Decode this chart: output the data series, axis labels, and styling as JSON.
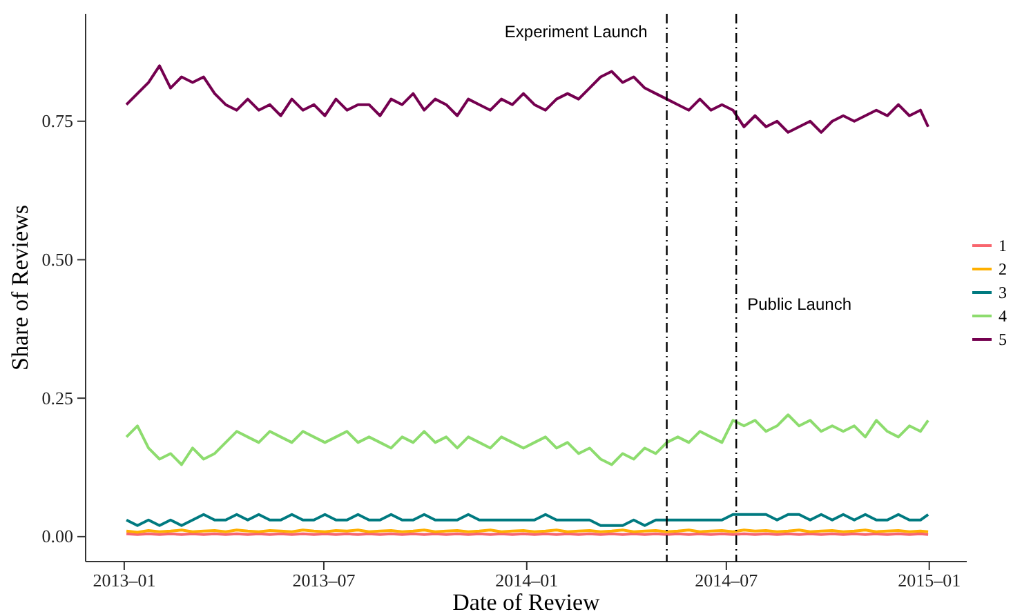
{
  "chart_data": {
    "type": "line",
    "xlabel": "Date of Review",
    "ylabel": "Share of Reviews",
    "x": [
      "2013-01-03",
      "2013-01-13",
      "2013-01-23",
      "2013-02-02",
      "2013-02-12",
      "2013-02-22",
      "2013-03-04",
      "2013-03-14",
      "2013-03-24",
      "2013-04-03",
      "2013-04-13",
      "2013-04-23",
      "2013-05-03",
      "2013-05-13",
      "2013-05-23",
      "2013-06-02",
      "2013-06-12",
      "2013-06-22",
      "2013-07-02",
      "2013-07-12",
      "2013-07-22",
      "2013-08-01",
      "2013-08-11",
      "2013-08-21",
      "2013-08-31",
      "2013-09-10",
      "2013-09-20",
      "2013-09-30",
      "2013-10-10",
      "2013-10-20",
      "2013-10-30",
      "2013-11-09",
      "2013-11-19",
      "2013-11-29",
      "2013-12-09",
      "2013-12-19",
      "2013-12-29",
      "2014-01-08",
      "2014-01-18",
      "2014-01-28",
      "2014-02-07",
      "2014-02-17",
      "2014-02-27",
      "2014-03-09",
      "2014-03-19",
      "2014-03-29",
      "2014-04-08",
      "2014-04-18",
      "2014-04-28",
      "2014-05-08",
      "2014-05-18",
      "2014-05-28",
      "2014-06-07",
      "2014-06-17",
      "2014-06-27",
      "2014-07-07",
      "2014-07-17",
      "2014-07-27",
      "2014-08-06",
      "2014-08-16",
      "2014-08-26",
      "2014-09-05",
      "2014-09-15",
      "2014-09-25",
      "2014-10-05",
      "2014-10-15",
      "2014-10-25",
      "2014-11-04",
      "2014-11-14",
      "2014-11-24",
      "2014-12-04",
      "2014-12-14",
      "2014-12-24",
      "2014-12-31"
    ],
    "series": [
      {
        "name": "1",
        "color": "#f8666e",
        "values": [
          0.005,
          0.004,
          0.005,
          0.004,
          0.005,
          0.004,
          0.005,
          0.004,
          0.005,
          0.004,
          0.005,
          0.004,
          0.005,
          0.004,
          0.005,
          0.004,
          0.005,
          0.004,
          0.005,
          0.004,
          0.005,
          0.004,
          0.005,
          0.004,
          0.005,
          0.004,
          0.005,
          0.004,
          0.005,
          0.004,
          0.005,
          0.004,
          0.005,
          0.004,
          0.005,
          0.004,
          0.005,
          0.004,
          0.005,
          0.004,
          0.005,
          0.004,
          0.005,
          0.004,
          0.005,
          0.004,
          0.005,
          0.004,
          0.005,
          0.004,
          0.005,
          0.004,
          0.005,
          0.004,
          0.005,
          0.004,
          0.005,
          0.004,
          0.005,
          0.004,
          0.005,
          0.004,
          0.005,
          0.004,
          0.005,
          0.004,
          0.005,
          0.004,
          0.005,
          0.004,
          0.005,
          0.004,
          0.005,
          0.004
        ]
      },
      {
        "name": "2",
        "color": "#ffb000",
        "values": [
          0.01,
          0.008,
          0.011,
          0.009,
          0.01,
          0.012,
          0.009,
          0.01,
          0.011,
          0.009,
          0.012,
          0.01,
          0.009,
          0.011,
          0.01,
          0.009,
          0.012,
          0.01,
          0.009,
          0.011,
          0.01,
          0.012,
          0.009,
          0.01,
          0.011,
          0.009,
          0.01,
          0.012,
          0.009,
          0.01,
          0.011,
          0.009,
          0.01,
          0.012,
          0.009,
          0.01,
          0.011,
          0.009,
          0.01,
          0.012,
          0.009,
          0.01,
          0.011,
          0.009,
          0.01,
          0.012,
          0.009,
          0.01,
          0.011,
          0.009,
          0.01,
          0.012,
          0.009,
          0.01,
          0.011,
          0.009,
          0.012,
          0.01,
          0.011,
          0.009,
          0.01,
          0.012,
          0.009,
          0.01,
          0.011,
          0.009,
          0.01,
          0.012,
          0.009,
          0.01,
          0.011,
          0.009,
          0.01,
          0.009
        ]
      },
      {
        "name": "3",
        "color": "#007a80",
        "values": [
          0.03,
          0.02,
          0.03,
          0.02,
          0.03,
          0.02,
          0.03,
          0.04,
          0.03,
          0.03,
          0.04,
          0.03,
          0.04,
          0.03,
          0.03,
          0.04,
          0.03,
          0.03,
          0.04,
          0.03,
          0.03,
          0.04,
          0.03,
          0.03,
          0.04,
          0.03,
          0.03,
          0.04,
          0.03,
          0.03,
          0.03,
          0.04,
          0.03,
          0.03,
          0.03,
          0.03,
          0.03,
          0.03,
          0.04,
          0.03,
          0.03,
          0.03,
          0.03,
          0.02,
          0.02,
          0.02,
          0.03,
          0.02,
          0.03,
          0.03,
          0.03,
          0.03,
          0.03,
          0.03,
          0.03,
          0.04,
          0.04,
          0.04,
          0.04,
          0.03,
          0.04,
          0.04,
          0.03,
          0.04,
          0.03,
          0.04,
          0.03,
          0.04,
          0.03,
          0.03,
          0.04,
          0.03,
          0.03,
          0.04
        ]
      },
      {
        "name": "4",
        "color": "#8ddc6e",
        "values": [
          0.18,
          0.2,
          0.16,
          0.14,
          0.15,
          0.13,
          0.16,
          0.14,
          0.15,
          0.17,
          0.19,
          0.18,
          0.17,
          0.19,
          0.18,
          0.17,
          0.19,
          0.18,
          0.17,
          0.18,
          0.19,
          0.17,
          0.18,
          0.17,
          0.16,
          0.18,
          0.17,
          0.19,
          0.17,
          0.18,
          0.16,
          0.18,
          0.17,
          0.16,
          0.18,
          0.17,
          0.16,
          0.17,
          0.18,
          0.16,
          0.17,
          0.15,
          0.16,
          0.14,
          0.13,
          0.15,
          0.14,
          0.16,
          0.15,
          0.17,
          0.18,
          0.17,
          0.19,
          0.18,
          0.17,
          0.21,
          0.2,
          0.21,
          0.19,
          0.2,
          0.22,
          0.2,
          0.21,
          0.19,
          0.2,
          0.19,
          0.2,
          0.18,
          0.21,
          0.19,
          0.18,
          0.2,
          0.19,
          0.21
        ]
      },
      {
        "name": "5",
        "color": "#74004f",
        "values": [
          0.78,
          0.8,
          0.82,
          0.85,
          0.81,
          0.83,
          0.82,
          0.83,
          0.8,
          0.78,
          0.77,
          0.79,
          0.77,
          0.78,
          0.76,
          0.79,
          0.77,
          0.78,
          0.76,
          0.79,
          0.77,
          0.78,
          0.78,
          0.76,
          0.79,
          0.78,
          0.8,
          0.77,
          0.79,
          0.78,
          0.76,
          0.79,
          0.78,
          0.77,
          0.79,
          0.78,
          0.8,
          0.78,
          0.77,
          0.79,
          0.8,
          0.79,
          0.81,
          0.83,
          0.84,
          0.82,
          0.83,
          0.81,
          0.8,
          0.79,
          0.78,
          0.77,
          0.79,
          0.77,
          0.78,
          0.77,
          0.74,
          0.76,
          0.74,
          0.75,
          0.73,
          0.74,
          0.75,
          0.73,
          0.75,
          0.76,
          0.75,
          0.76,
          0.77,
          0.76,
          0.78,
          0.76,
          0.77,
          0.74
        ]
      }
    ],
    "xlim": [
      "2012-11-27",
      "2015-02-04"
    ],
    "xticks": [
      {
        "value": "2013-01-01",
        "label": "2013–01"
      },
      {
        "value": "2013-07-01",
        "label": "2013–07"
      },
      {
        "value": "2014-01-01",
        "label": "2014–01"
      },
      {
        "value": "2014-07-01",
        "label": "2014–07"
      },
      {
        "value": "2015-01-01",
        "label": "2015–01"
      }
    ],
    "ylim": [
      -0.045,
      0.944
    ],
    "yticks": [
      {
        "value": 0,
        "label": "0.00"
      },
      {
        "value": 0.25,
        "label": "0.25"
      },
      {
        "value": 0.5,
        "label": "0.50"
      },
      {
        "value": 0.75,
        "label": "0.75"
      }
    ],
    "ref_lines": [
      {
        "axis": "x",
        "value": "2014-05-08",
        "color": "#000000",
        "line_style": "dashed",
        "label": "Experiment Launch"
      },
      {
        "axis": "x",
        "value": "2014-07-10",
        "color": "#000000",
        "line_style": "dashed",
        "label": "Public Launch"
      }
    ],
    "grid": false,
    "legend": "right",
    "line_style": "solid",
    "marker": "none"
  }
}
